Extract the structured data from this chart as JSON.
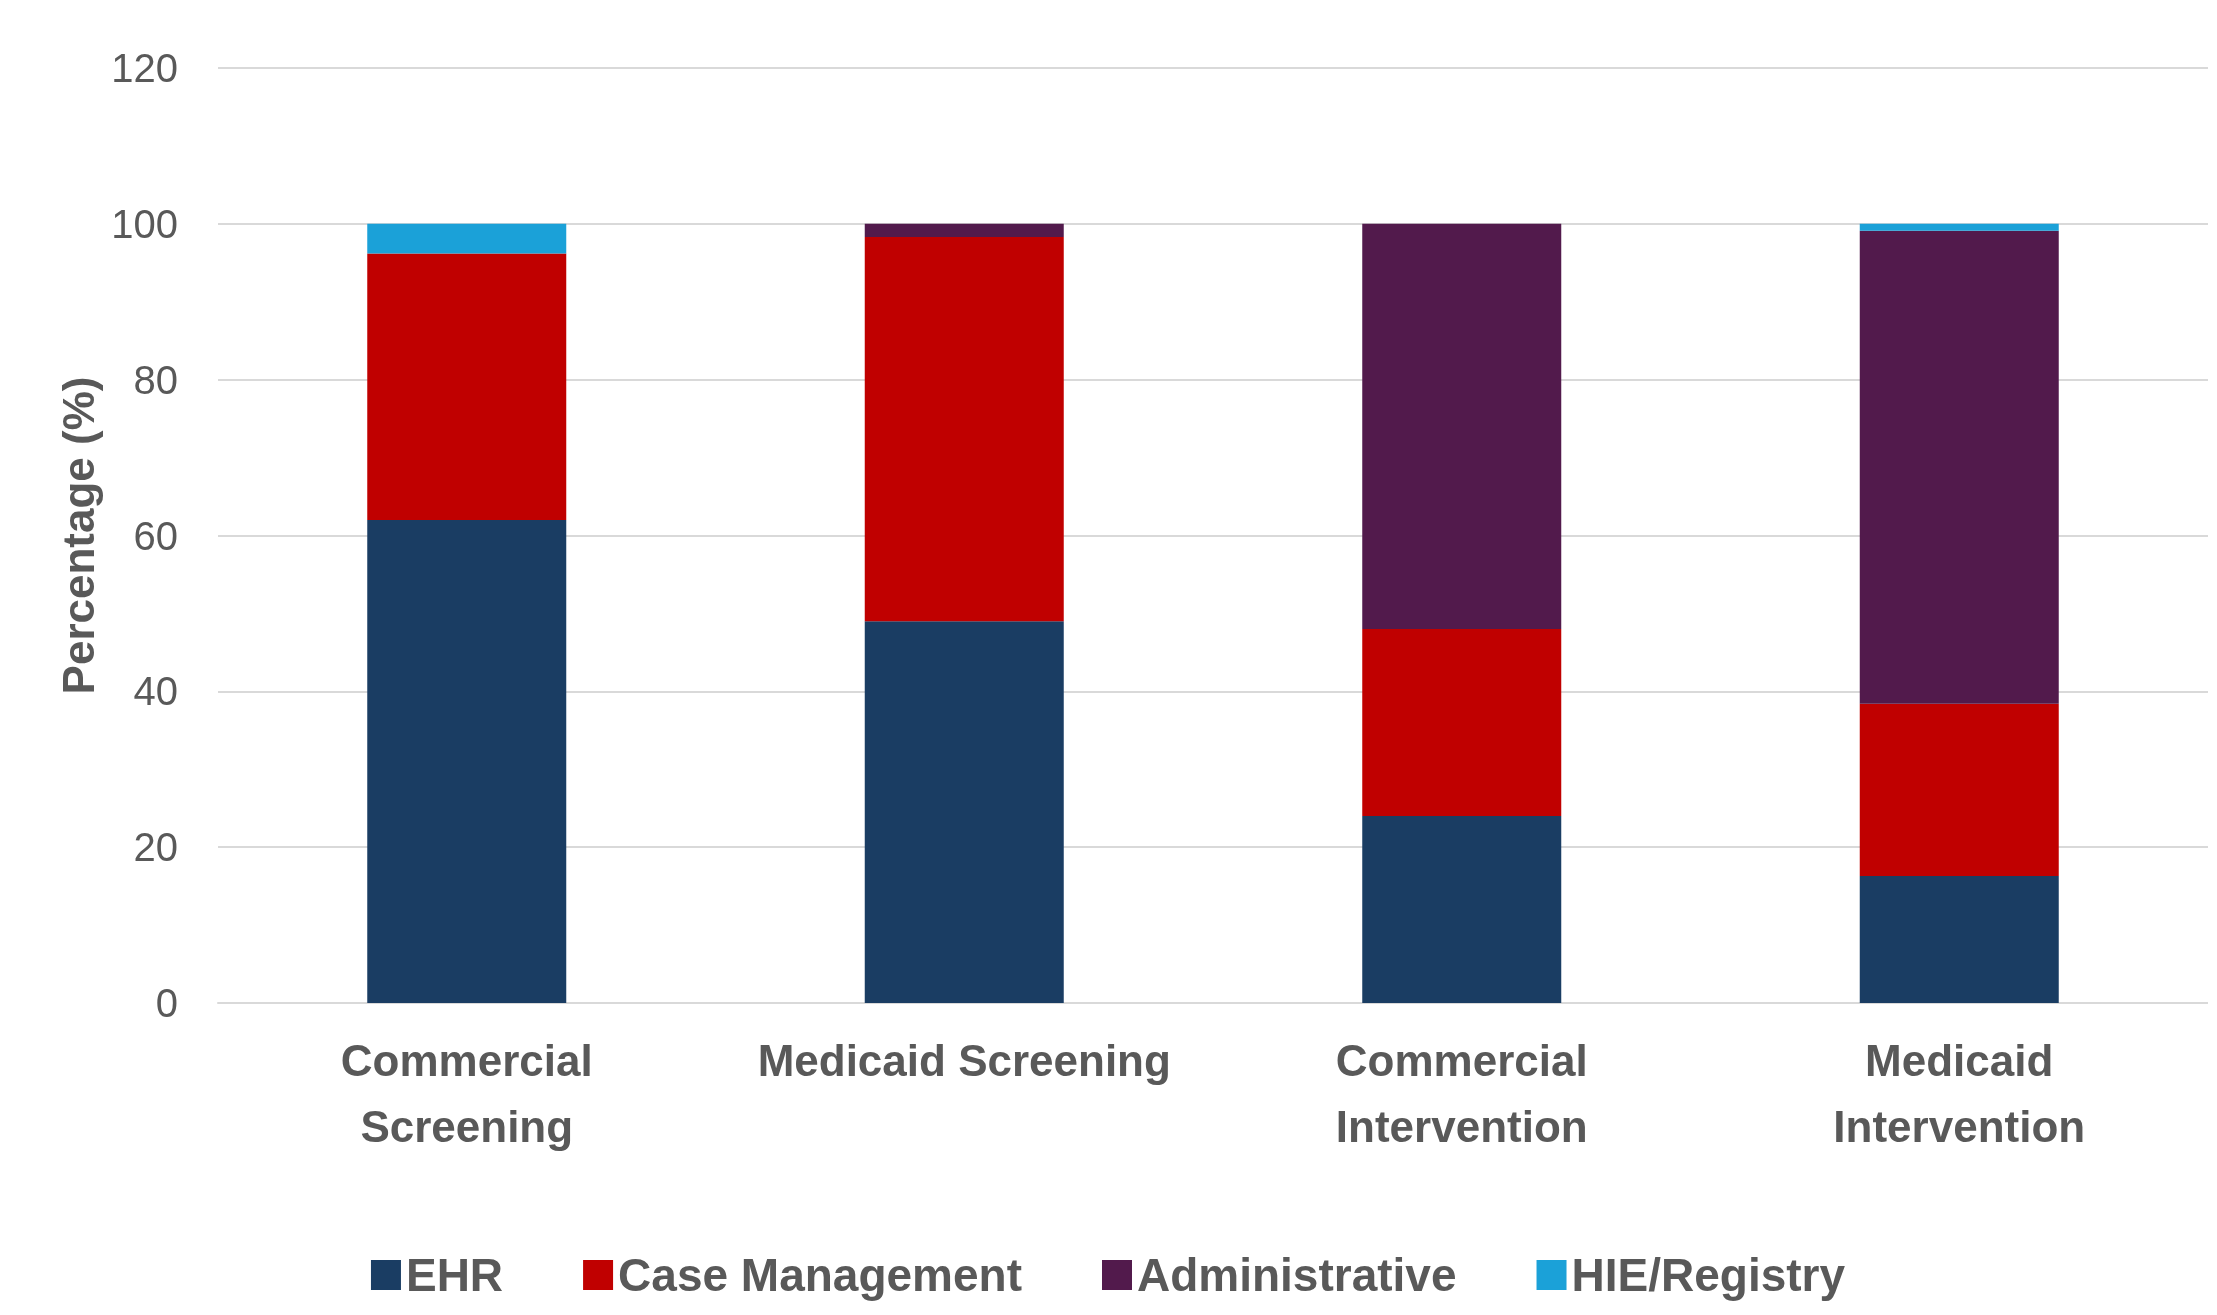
{
  "chart_data": {
    "type": "bar",
    "stacked": true,
    "ylabel": "Percentage (%)",
    "categories": [
      "Commercial\nScreening",
      "Medicaid Screening",
      "Commercial\nIntervention",
      "Medicaid\nIntervention"
    ],
    "series": [
      {
        "name": "EHR",
        "color": "#1a3d63",
        "values": [
          62,
          49,
          24,
          16.3
        ]
      },
      {
        "name": "Case Management",
        "color": "#c00000",
        "values": [
          34.2,
          49.3,
          24,
          22.1
        ]
      },
      {
        "name": "Administrative",
        "color": "#521a4c",
        "values": [
          0,
          1.7,
          52,
          60.7
        ]
      },
      {
        "name": "HIE/Registry",
        "color": "#1ba1d8",
        "values": [
          3.8,
          0,
          0,
          0.9
        ]
      }
    ],
    "ylim": [
      0,
      120
    ],
    "yticks": [
      0,
      20,
      40,
      60,
      80,
      100,
      120
    ],
    "grid": "y",
    "legend": "bottom"
  }
}
